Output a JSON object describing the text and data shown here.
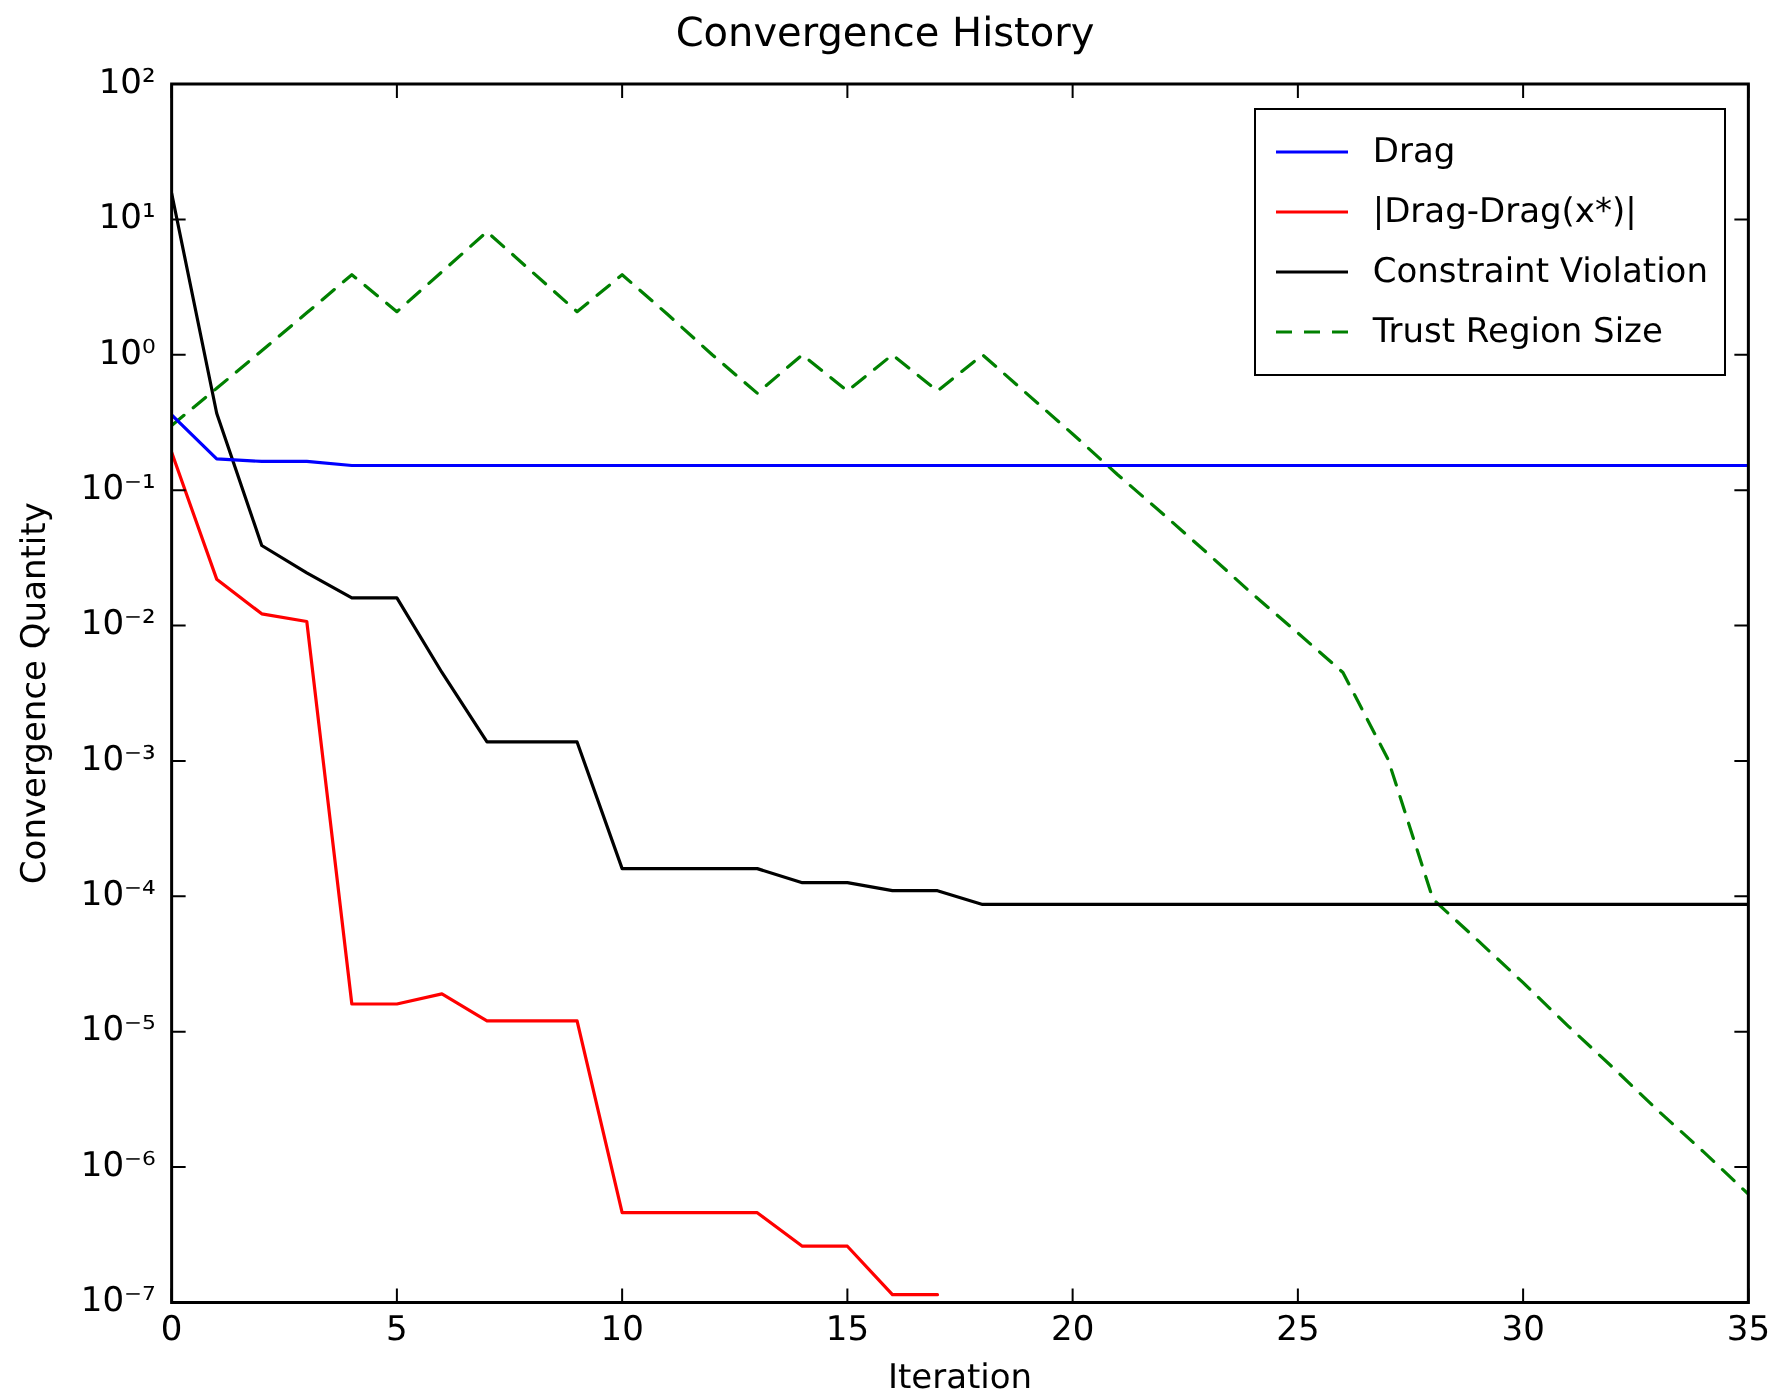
{
  "chart_data": {
    "type": "line",
    "title": "Convergence History",
    "xlabel": "Iteration",
    "ylabel": "Convergence Quantity",
    "x": [
      0,
      1,
      2,
      3,
      4,
      5,
      6,
      7,
      8,
      9,
      10,
      11,
      12,
      13,
      14,
      15,
      16,
      17,
      18,
      19,
      20,
      21,
      22,
      23,
      24,
      25,
      26,
      27,
      28,
      29,
      30,
      31,
      32,
      33,
      34,
      35
    ],
    "series": [
      {
        "name": "Drag",
        "color": "#0000ff",
        "line_style": "solid",
        "values": [
          0.36,
          0.17,
          0.163,
          0.163,
          0.152,
          0.152,
          0.152,
          0.152,
          0.152,
          0.152,
          0.152,
          0.152,
          0.152,
          0.152,
          0.152,
          0.152,
          0.152,
          0.152,
          0.152,
          0.152,
          0.152,
          0.152,
          0.152,
          0.152,
          0.152,
          0.152,
          0.152,
          0.152,
          0.152,
          0.152,
          0.152,
          0.152,
          0.152,
          0.152,
          0.152,
          0.152
        ]
      },
      {
        "name": "|Drag-Drag(x*)|",
        "color": "#ff0000",
        "line_style": "solid",
        "values": [
          0.19,
          0.022,
          0.0122,
          0.0107,
          1.6e-05,
          1.6e-05,
          1.9e-05,
          1.2e-05,
          1.2e-05,
          1.2e-05,
          4.6e-07,
          4.6e-07,
          4.6e-07,
          4.6e-07,
          2.6e-07,
          2.6e-07,
          1.14e-07,
          1.14e-07,
          null,
          null,
          null,
          null,
          null,
          null,
          null,
          null,
          null,
          null,
          null,
          null,
          null,
          null,
          null,
          null,
          null,
          null
        ]
      },
      {
        "name": "Constraint Violation",
        "color": "#000000",
        "line_style": "solid",
        "values": [
          15.6,
          0.37,
          0.039,
          0.0245,
          0.016,
          0.016,
          0.0045,
          0.00138,
          0.00138,
          0.00138,
          0.00016,
          0.00016,
          0.00016,
          0.00016,
          0.000126,
          0.000126,
          0.00011,
          0.00011,
          8.7e-05,
          8.7e-05,
          8.7e-05,
          8.7e-05,
          8.7e-05,
          8.7e-05,
          8.7e-05,
          8.7e-05,
          8.7e-05,
          8.7e-05,
          8.7e-05,
          8.7e-05,
          8.7e-05,
          8.7e-05,
          8.7e-05,
          8.7e-05,
          8.7e-05,
          8.7e-05
        ]
      },
      {
        "name": "Trust Region Size",
        "color": "#008000",
        "line_style": "dashed",
        "values": [
          0.3,
          0.565,
          1.07,
          2.04,
          3.9,
          2.08,
          4.1,
          8.1,
          4.1,
          2.08,
          3.9,
          2.0,
          1.0,
          0.52,
          1.0,
          0.54,
          1.0,
          0.54,
          1.0,
          0.51,
          0.26,
          0.13,
          0.067,
          0.034,
          0.017,
          0.0088,
          0.0045,
          0.00103,
          9.5e-05,
          4.7e-05,
          2.3e-05,
          1.1e-05,
          5.4e-06,
          2.6e-06,
          1.3e-06,
          6.3e-07
        ]
      }
    ],
    "log": "y",
    "xlim": [
      0,
      35
    ],
    "xticks": [
      0,
      5,
      10,
      15,
      20,
      25,
      30,
      35
    ],
    "ylim": [
      1e-07,
      100
    ],
    "yticks": [
      {
        "value": 1e-07,
        "label": "10⁻⁷"
      },
      {
        "value": 1e-06,
        "label": "10⁻⁶"
      },
      {
        "value": 1e-05,
        "label": "10⁻⁵"
      },
      {
        "value": 0.0001,
        "label": "10⁻⁴"
      },
      {
        "value": 0.001,
        "label": "10⁻³"
      },
      {
        "value": 0.01,
        "label": "10⁻²"
      },
      {
        "value": 0.1,
        "label": "10⁻¹"
      },
      {
        "value": 1,
        "label": "10⁰"
      },
      {
        "value": 10,
        "label": "10¹"
      },
      {
        "value": 100,
        "label": "10²"
      }
    ],
    "grid": false,
    "legend": "top right",
    "marker": "none"
  }
}
